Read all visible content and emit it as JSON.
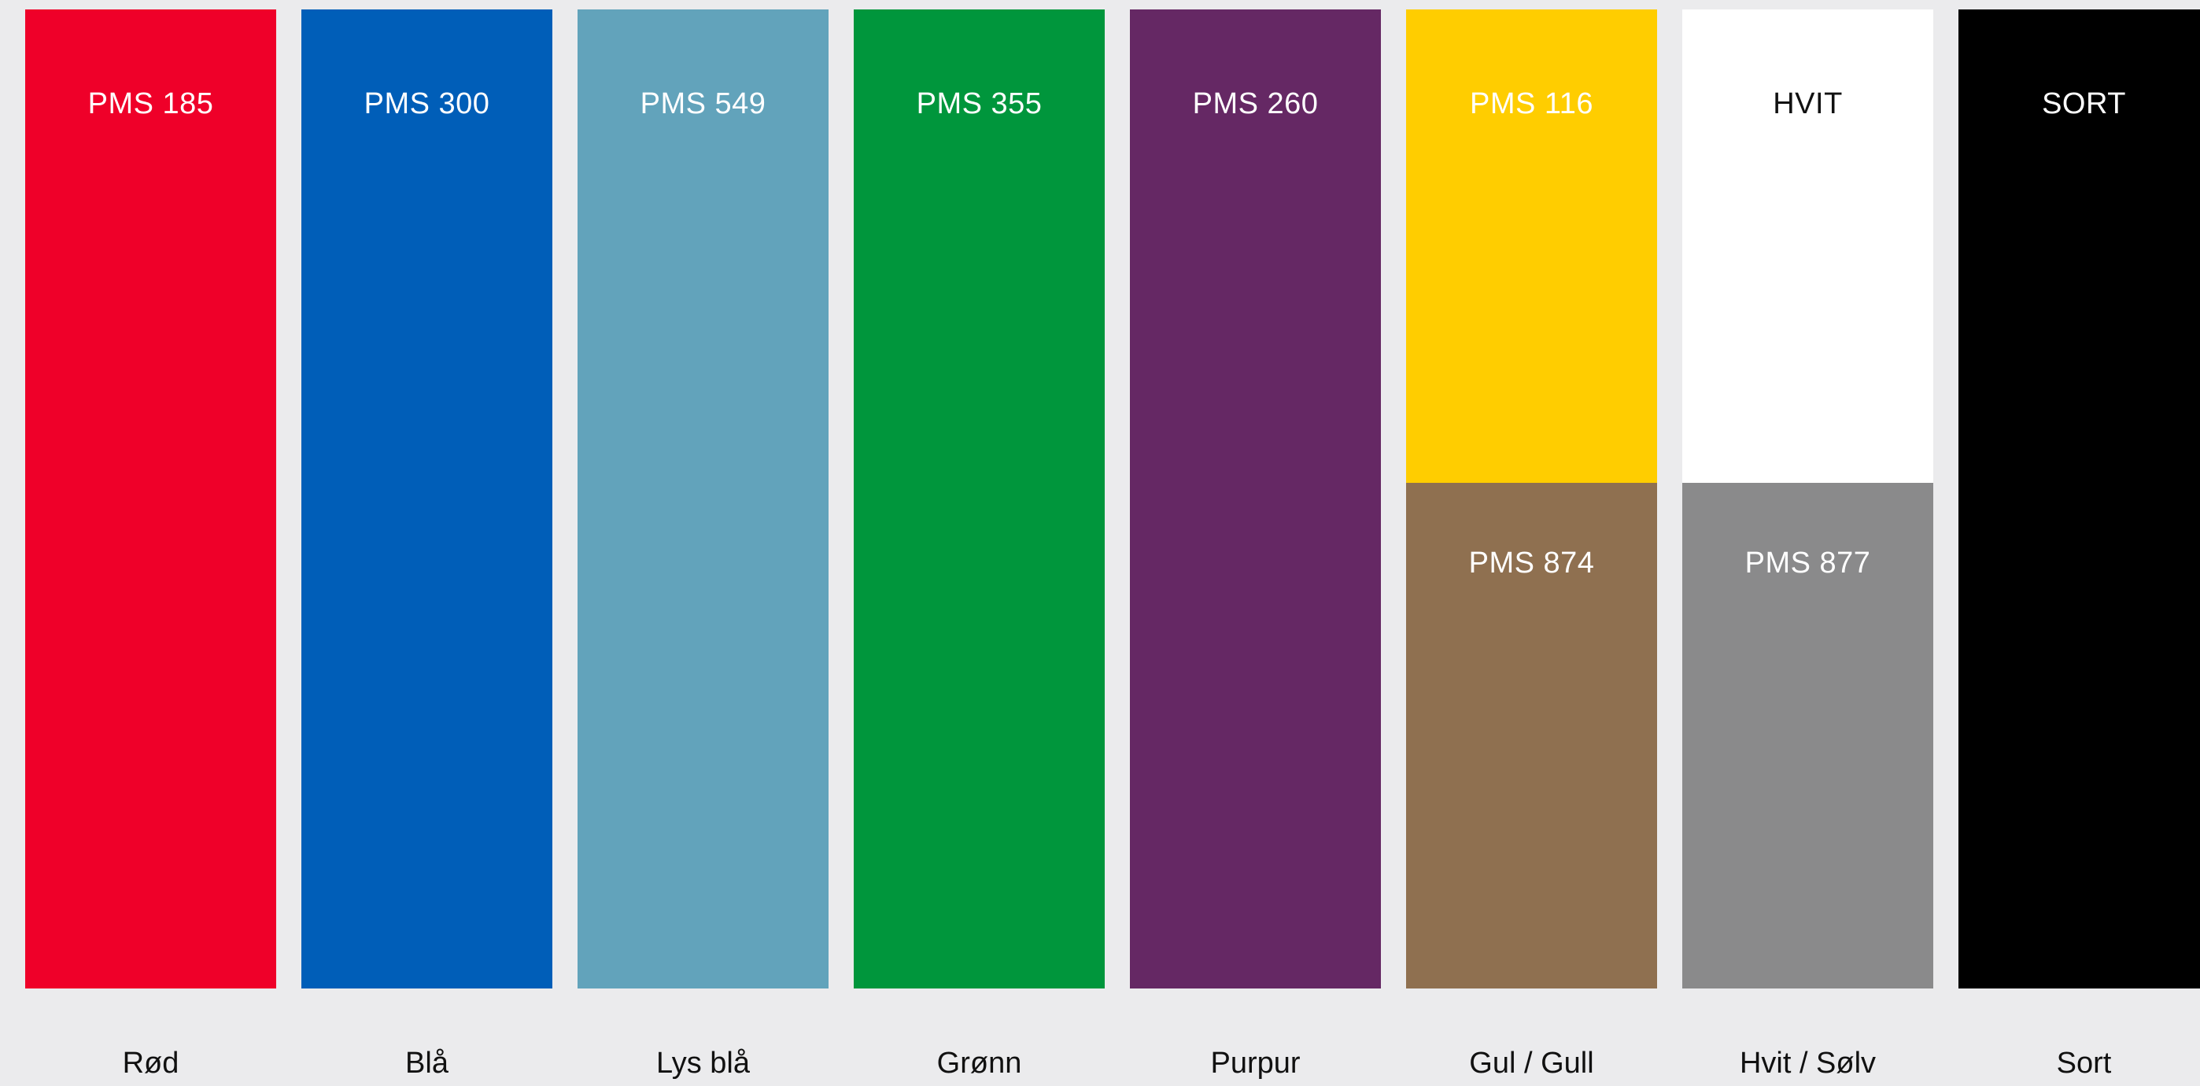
{
  "background": "#ebebed",
  "swatches": [
    {
      "id": "rod",
      "name": "Rød",
      "blocks": [
        {
          "code": "PMS 185",
          "color": "#ef0029",
          "text_color": "#ffffff"
        }
      ]
    },
    {
      "id": "bla",
      "name": "Blå",
      "blocks": [
        {
          "code": "PMS 300",
          "color": "#005eb8",
          "text_color": "#ffffff"
        }
      ]
    },
    {
      "id": "lys-bla",
      "name": "Lys blå",
      "blocks": [
        {
          "code": "PMS 549",
          "color": "#62a3bb",
          "text_color": "#ffffff"
        }
      ]
    },
    {
      "id": "gronn",
      "name": "Grønn",
      "blocks": [
        {
          "code": "PMS 355",
          "color": "#00963c",
          "text_color": "#ffffff"
        }
      ]
    },
    {
      "id": "purpur",
      "name": "Purpur",
      "blocks": [
        {
          "code": "PMS 260",
          "color": "#652864",
          "text_color": "#ffffff"
        }
      ]
    },
    {
      "id": "gul-gull",
      "name": "Gul / Gull",
      "blocks": [
        {
          "code": "PMS 116",
          "color": "#ffcd00",
          "text_color": "#ffffff"
        },
        {
          "code": "PMS 874",
          "color": "#8f7050",
          "text_color": "#ffffff"
        }
      ]
    },
    {
      "id": "hvit-solv",
      "name": "Hvit / Sølv",
      "blocks": [
        {
          "code": "HVIT",
          "color": "#ffffff",
          "text_color": "#111111"
        },
        {
          "code": "PMS 877",
          "color": "#8a8a8b",
          "text_color": "#ffffff"
        }
      ]
    },
    {
      "id": "sort",
      "name": "Sort",
      "blocks": [
        {
          "code": "SORT",
          "color": "#000000",
          "text_color": "#ffffff"
        }
      ]
    }
  ]
}
